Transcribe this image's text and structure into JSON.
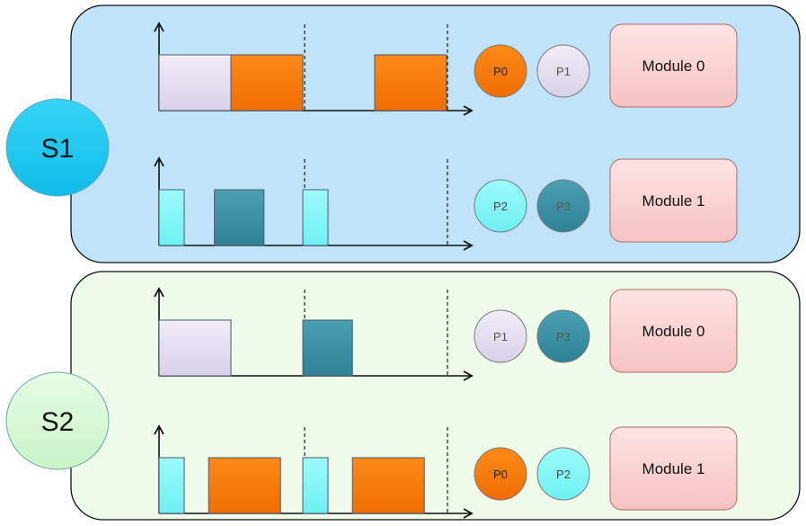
{
  "colors": {
    "s1_panel": "#bfe3f8",
    "s2_panel": "#eefbea",
    "s1_label_fill": "#1bc8f1",
    "s2_label_fill": "#d6f9d5",
    "module_fill": "#fbd2d2",
    "lavender": "#e5dff0",
    "orange": "#fb7b04",
    "teal": "#3791a5",
    "cyan": "#7ef8f9",
    "stroke": "#333333"
  },
  "icons": {
    "arrow": "axis-arrow-icon"
  },
  "sections": [
    {
      "label": "S1",
      "rows": [
        {
          "processes": [
            {
              "label": "P0",
              "color": "orange"
            },
            {
              "label": "P1",
              "color": "lavender"
            }
          ],
          "module": "Module 0",
          "blocks": [
            {
              "start": 0.0,
              "end": 1.0,
              "height": 0.92,
              "color": "lavender"
            },
            {
              "start": 1.0,
              "end": 2.0,
              "height": 0.92,
              "color": "orange"
            },
            {
              "start": 3.0,
              "end": 4.0,
              "height": 0.92,
              "color": "orange"
            }
          ]
        },
        {
          "processes": [
            {
              "label": "P2",
              "color": "cyan"
            },
            {
              "label": "P3",
              "color": "teal"
            }
          ],
          "module": "Module 1",
          "blocks": [
            {
              "start": 0.0,
              "end": 0.35,
              "height": 0.92,
              "color": "cyan"
            },
            {
              "start": 0.77,
              "end": 1.46,
              "height": 0.92,
              "color": "teal"
            },
            {
              "start": 2.0,
              "end": 2.35,
              "height": 0.92,
              "color": "cyan"
            }
          ]
        }
      ]
    },
    {
      "label": "S2",
      "rows": [
        {
          "processes": [
            {
              "label": "P1",
              "color": "lavender"
            },
            {
              "label": "P3",
              "color": "teal"
            }
          ],
          "module": "Module 0",
          "blocks": [
            {
              "start": 0.0,
              "end": 1.0,
              "height": 0.92,
              "color": "lavender"
            },
            {
              "start": 2.0,
              "end": 2.69,
              "height": 0.92,
              "color": "teal"
            }
          ]
        },
        {
          "processes": [
            {
              "label": "P0",
              "color": "orange"
            },
            {
              "label": "P2",
              "color": "cyan"
            }
          ],
          "module": "Module 1",
          "blocks": [
            {
              "start": 0.0,
              "end": 0.35,
              "height": 0.92,
              "color": "cyan"
            },
            {
              "start": 0.69,
              "end": 1.69,
              "height": 0.92,
              "color": "orange"
            },
            {
              "start": 2.0,
              "end": 2.35,
              "height": 0.92,
              "color": "cyan"
            },
            {
              "start": 2.69,
              "end": 3.69,
              "height": 0.92,
              "color": "orange"
            }
          ]
        }
      ]
    }
  ]
}
